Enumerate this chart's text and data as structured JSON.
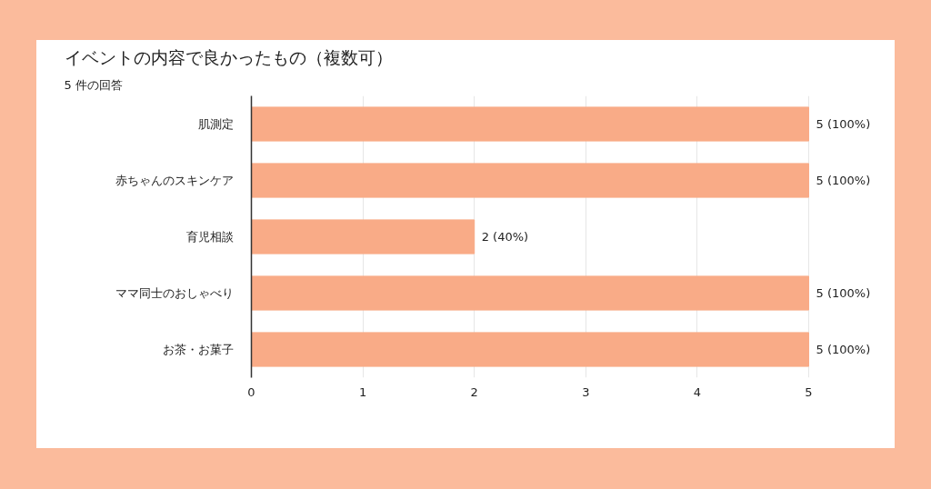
{
  "chart_data": {
    "type": "bar",
    "orientation": "horizontal",
    "title": "イベントの内容で良かったもの（複数可）",
    "subtitle": "5 件の回答",
    "categories": [
      "肌測定",
      "赤ちゃんのスキンケア",
      "育児相談",
      "ママ同士のおしゃべり",
      "お茶・お菓子"
    ],
    "values": [
      5,
      5,
      2,
      5,
      5
    ],
    "value_labels": [
      "5 (100%)",
      "5 (100%)",
      "2 (40%)",
      "5 (100%)",
      "5 (100%)"
    ],
    "color": "#f9ab87",
    "xlim": [
      0,
      5
    ],
    "xticks": [
      0,
      1,
      2,
      3,
      4,
      5
    ],
    "grid": "x"
  }
}
